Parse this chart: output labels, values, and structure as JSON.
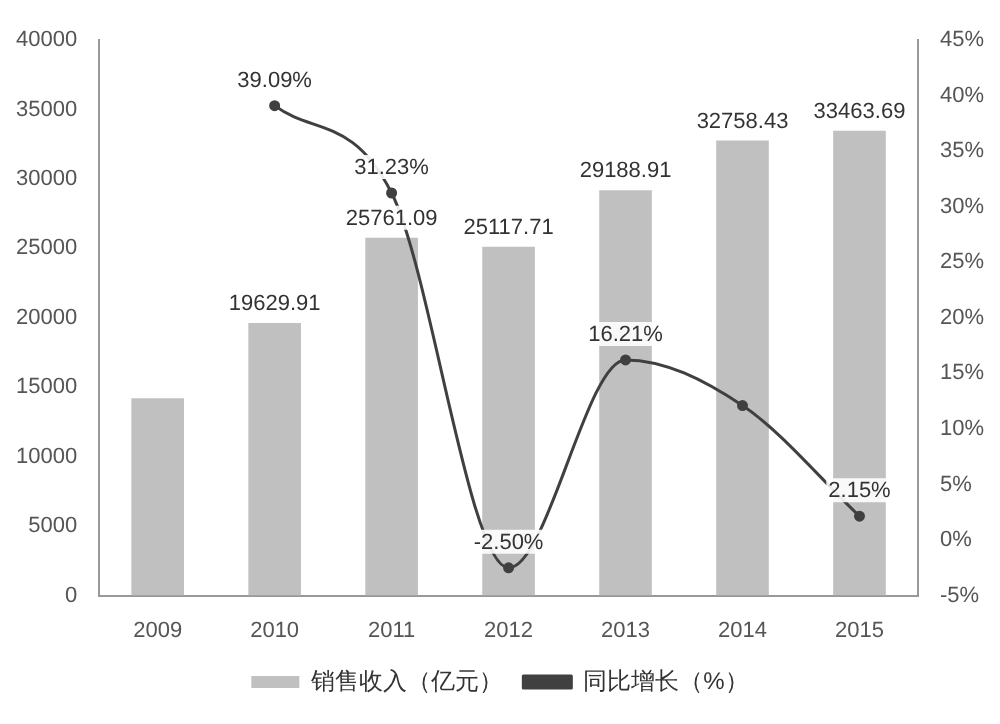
{
  "chart_data": {
    "type": "bar",
    "categories": [
      "2009",
      "2010",
      "2011",
      "2012",
      "2013",
      "2014",
      "2015"
    ],
    "series": [
      {
        "name": "销售收入（亿元）",
        "color": "#c0c0c0",
        "values": [
          14200,
          19629.91,
          25761.09,
          25117.71,
          29188.91,
          32758.43,
          33463.69
        ],
        "value_labels": [
          null,
          "19629.91",
          "25761.09",
          "25117.71",
          "29188.91",
          "32758.43",
          "33463.69"
        ]
      },
      {
        "name": "同比增长（%）",
        "type": "line",
        "axis": "y2",
        "color": "#404040",
        "marker": "circle",
        "values": [
          null,
          39.09,
          31.23,
          -2.5,
          16.21,
          12.1,
          2.15
        ],
        "value_labels": [
          null,
          "39.09%",
          "31.23%",
          "-2.50%",
          "16.21%",
          null,
          "2.15%"
        ]
      }
    ],
    "ylim": [
      0,
      40000
    ],
    "yticks": [
      0,
      5000,
      10000,
      15000,
      20000,
      25000,
      30000,
      35000,
      40000
    ],
    "y2lim": [
      -5,
      45
    ],
    "y2ticks": [
      {
        "value": -5,
        "label": "-5%"
      },
      {
        "value": 0,
        "label": "0%"
      },
      {
        "value": 5,
        "label": "5%"
      },
      {
        "value": 10,
        "label": "10%"
      },
      {
        "value": 15,
        "label": "15%"
      },
      {
        "value": 20,
        "label": "20%"
      },
      {
        "value": 25,
        "label": "25%"
      },
      {
        "value": 30,
        "label": "30%"
      },
      {
        "value": 35,
        "label": "35%"
      },
      {
        "value": 40,
        "label": "40%"
      },
      {
        "value": 45,
        "label": "45%"
      }
    ],
    "legend": "bottom",
    "grid": false
  }
}
